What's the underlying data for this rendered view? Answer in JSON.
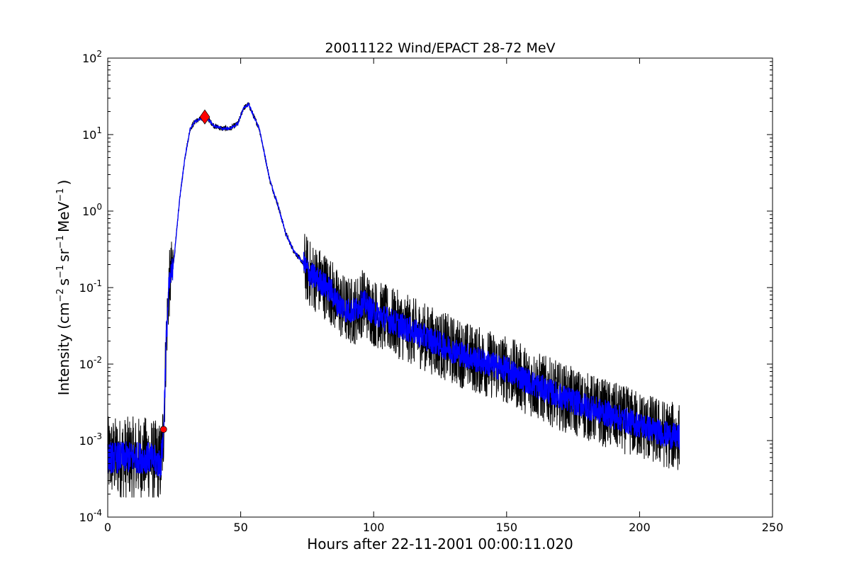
{
  "chart_data": {
    "type": "line",
    "title": "20011122 Wind/EPACT 28-72 MeV",
    "xlabel": "Hours after 22-11-2001 00:00:11.020",
    "ylabel": {
      "prefix": "Intensity (cm",
      "sup1": "−2",
      "mid1": "s",
      "sup2": "−1",
      "mid2": "sr",
      "sup3": "−1",
      "mid3": "MeV",
      "sup4": "−1",
      "suffix": ")"
    },
    "xlim": [
      0,
      250
    ],
    "ylim": [
      0.0001,
      100
    ],
    "yscale": "log",
    "grid": false,
    "x_ticks": [
      {
        "value": 0,
        "label": "0"
      },
      {
        "value": 50,
        "label": "50"
      },
      {
        "value": 100,
        "label": "100"
      },
      {
        "value": 150,
        "label": "150"
      },
      {
        "value": 200,
        "label": "200"
      },
      {
        "value": 250,
        "label": "250"
      }
    ],
    "y_ticks": [
      {
        "value": 0.0001,
        "base": "10",
        "exp": "-4"
      },
      {
        "value": 0.001,
        "base": "10",
        "exp": "-3"
      },
      {
        "value": 0.01,
        "base": "10",
        "exp": "-2"
      },
      {
        "value": 0.1,
        "base": "10",
        "exp": "-1"
      },
      {
        "value": 1,
        "base": "10",
        "exp": "0"
      },
      {
        "value": 10,
        "base": "10",
        "exp": "1"
      },
      {
        "value": 100,
        "base": "10",
        "exp": "2"
      }
    ],
    "series": [
      {
        "role": "raw",
        "color": "#000000",
        "noise_scale": 0.9,
        "floor": 0.00018,
        "x": [
          0,
          5,
          10,
          15,
          20,
          21,
          22,
          23,
          24,
          25,
          27,
          29,
          31,
          33,
          35,
          37,
          40,
          43,
          46,
          49,
          51,
          53,
          55,
          57,
          59,
          61,
          64,
          67,
          70,
          73,
          76,
          80,
          84,
          86,
          90,
          93,
          96,
          100,
          110,
          120,
          130,
          137,
          140,
          150,
          160,
          170,
          180,
          190,
          200,
          210,
          215
        ],
        "y": [
          0.0006,
          0.0006,
          0.0006,
          0.0006,
          0.0005,
          0.0013,
          0.02,
          0.1,
          0.15,
          0.25,
          1.4,
          5,
          12,
          15,
          16,
          17,
          13,
          12,
          12,
          14,
          22,
          25,
          17,
          12,
          5.5,
          2.5,
          1.2,
          0.5,
          0.3,
          0.22,
          0.15,
          0.12,
          0.09,
          0.065,
          0.05,
          0.05,
          0.065,
          0.047,
          0.032,
          0.022,
          0.015,
          0.012,
          0.011,
          0.0085,
          0.0055,
          0.0038,
          0.0028,
          0.0021,
          0.0016,
          0.0012,
          0.0011
        ]
      },
      {
        "role": "smoothed",
        "color": "#0000ff",
        "noise_scale": 0.35,
        "floor": 0.0002,
        "x": [
          0,
          5,
          10,
          15,
          20,
          21,
          22,
          23,
          24,
          25,
          27,
          29,
          31,
          33,
          35,
          37,
          40,
          43,
          46,
          49,
          51,
          53,
          55,
          57,
          59,
          61,
          64,
          67,
          70,
          73,
          76,
          80,
          84,
          86,
          90,
          93,
          96,
          100,
          110,
          120,
          130,
          137,
          140,
          150,
          160,
          170,
          180,
          190,
          200,
          210,
          215
        ],
        "y": [
          0.0006,
          0.0006,
          0.0006,
          0.0006,
          0.0005,
          0.0013,
          0.02,
          0.1,
          0.15,
          0.25,
          1.4,
          5,
          12,
          15,
          16,
          17,
          13,
          12,
          12,
          14,
          22,
          25,
          17,
          12,
          5.5,
          2.5,
          1.2,
          0.5,
          0.3,
          0.22,
          0.15,
          0.12,
          0.09,
          0.065,
          0.05,
          0.05,
          0.065,
          0.047,
          0.032,
          0.022,
          0.015,
          0.012,
          0.011,
          0.0085,
          0.0055,
          0.0038,
          0.0028,
          0.0021,
          0.0016,
          0.0012,
          0.0011
        ]
      }
    ],
    "markers": [
      {
        "role": "onset",
        "shape": "circle",
        "color": "#ff0000",
        "x": 21,
        "y": 0.0014
      },
      {
        "role": "peak",
        "shape": "diamond",
        "color": "#ff0000",
        "x": 36.5,
        "y": 17
      }
    ]
  }
}
